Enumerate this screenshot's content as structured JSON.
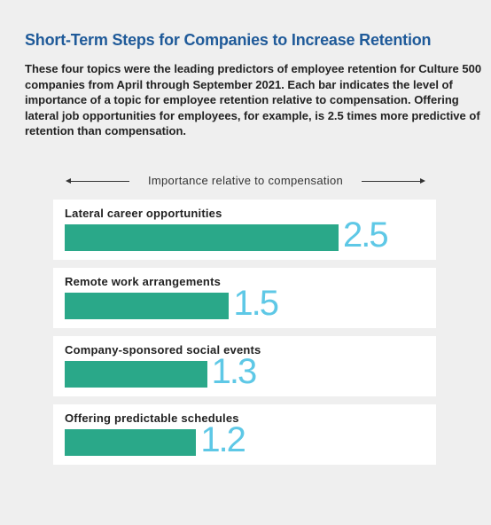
{
  "header": {
    "title": "Short-Term Steps for Companies to Increase Retention",
    "subtitle": "These four topics were the leading predictors of employee retention for Culture 500 companies from April through September 2021. Each bar indicates the level of importance of a topic for employee retention relative to compensation. Offering lateral job opportunities for employees, for example, is 2.5 times more predictive of retention than compensation."
  },
  "chart_data": {
    "type": "bar",
    "orientation": "horizontal",
    "xlabel": "Importance relative to compensation",
    "categories": [
      "Lateral career opportunities",
      "Remote work arrangements",
      "Company-sponsored social events",
      "Offering predictable schedules"
    ],
    "values": [
      2.5,
      1.5,
      1.3,
      1.2
    ],
    "value_labels": [
      "2.5",
      "1.5",
      "1.3",
      "1.2"
    ],
    "xlim": [
      0,
      2.5
    ],
    "colors": {
      "bar": "#2aa889",
      "value_label": "#5ec8e6",
      "title": "#1f5a99"
    }
  }
}
